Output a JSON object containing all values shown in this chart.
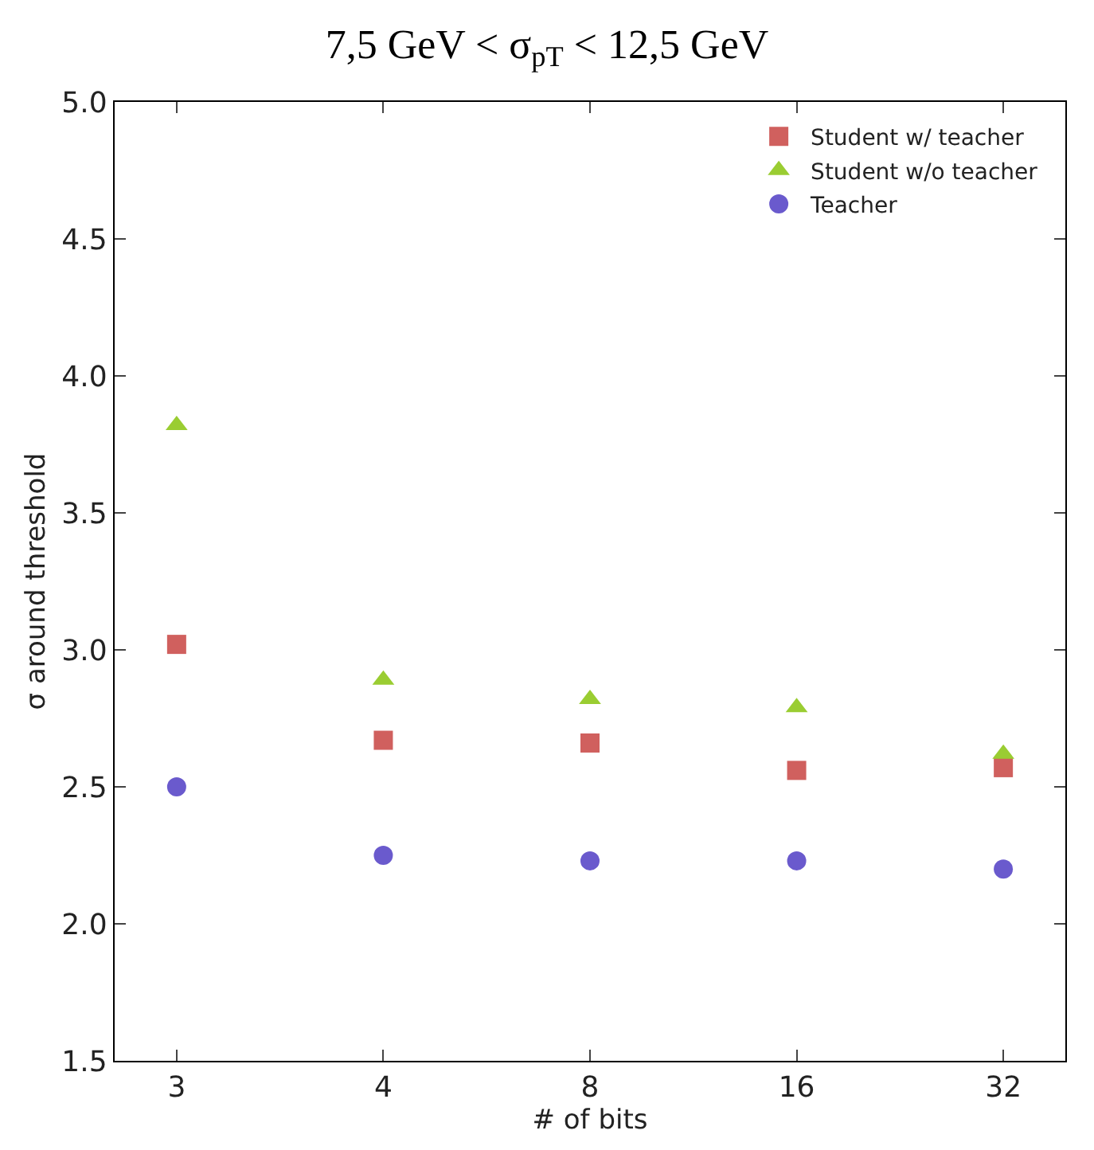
{
  "chart_data": {
    "type": "scatter",
    "title": "7,5 GeV < σ$_{pT}$ < 12,5 GeV",
    "xlabel": "# of bits",
    "ylabel": "σ around threshold",
    "categories": [
      "3",
      "4",
      "8",
      "16",
      "32"
    ],
    "series": [
      {
        "name": "Student w/ teacher",
        "color": "#d0605e",
        "marker": "square",
        "values": [
          3.02,
          2.67,
          2.66,
          2.56,
          2.57
        ]
      },
      {
        "name": "Student w/o teacher",
        "color": "#9acd32",
        "marker": "triangle",
        "values": [
          3.82,
          2.89,
          2.82,
          2.79,
          2.62
        ]
      },
      {
        "name": "Teacher",
        "color": "#6a5acd",
        "marker": "circle",
        "values": [
          2.5,
          2.25,
          2.23,
          2.23,
          2.2
        ]
      }
    ],
    "ylim": [
      1.5,
      5.0
    ],
    "yticks": [
      {
        "value": 1.5,
        "label": "1.5"
      },
      {
        "value": 2,
        "label": "2.0"
      },
      {
        "value": 2.5,
        "label": "2.5"
      },
      {
        "value": 3,
        "label": "3.0"
      },
      {
        "value": 3.5,
        "label": "3.5"
      },
      {
        "value": 4,
        "label": "4.0"
      },
      {
        "value": 4.5,
        "label": "4.5"
      },
      {
        "value": 5,
        "label": "5.0"
      }
    ],
    "grid": false,
    "legend": "top right"
  }
}
